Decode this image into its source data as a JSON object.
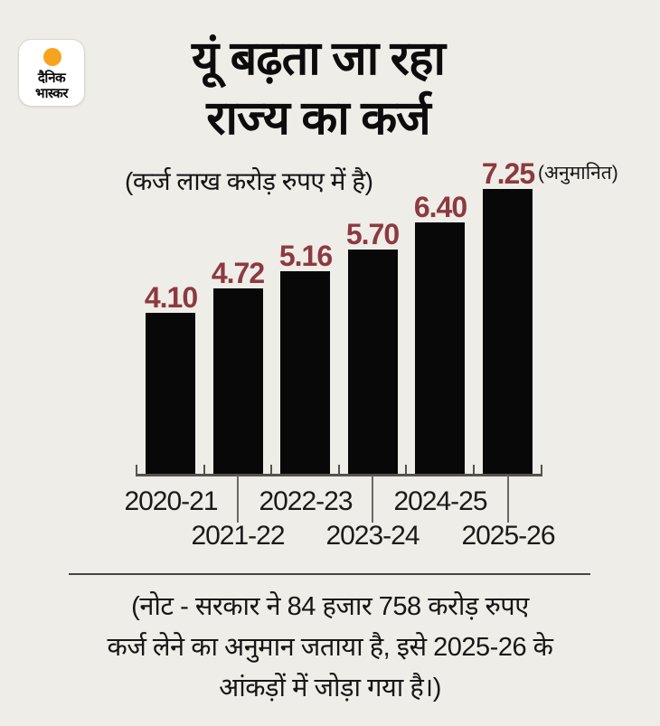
{
  "brand": {
    "name_line1": "दैनिक",
    "name_line2": "भास्कर",
    "dot_color": "#f6a41f"
  },
  "title": {
    "line1": "यूं बढ़ता जा रहा",
    "line2": "राज्य का कर्ज"
  },
  "subtitle": "(कर्ज लाख करोड़ रुपए में है)",
  "chart_data": {
    "type": "bar",
    "title": "यूं बढ़ता जा रहा राज्य का कर्ज",
    "unit_note": "(कर्ज लाख करोड़ रुपए में है)",
    "categories": [
      "2020-21",
      "2021-22",
      "2022-23",
      "2023-24",
      "2024-25",
      "2025-26"
    ],
    "values": [
      4.1,
      4.72,
      5.16,
      5.7,
      6.4,
      7.25
    ],
    "value_labels": [
      "4.10",
      "4.72",
      "5.16",
      "5.70",
      "6.40",
      "7.25"
    ],
    "annotation": {
      "text": "(अनुमानित)",
      "applies_to": "2025-26"
    },
    "ylim": [
      0,
      7.25
    ],
    "bar_color": "#080808",
    "value_label_color": "#8c3a40",
    "grid": false,
    "legend": false,
    "x_label_layout": "staggered-two-rows"
  },
  "note": {
    "lines": [
      "(नोट - सरकार ने 84 हजार 758 करोड़ रुपए",
      "कर्ज लेने का अनुमान जताया है, इसे 2025-26 के",
      "आंकड़ों में जोड़ा गया है।)"
    ]
  }
}
